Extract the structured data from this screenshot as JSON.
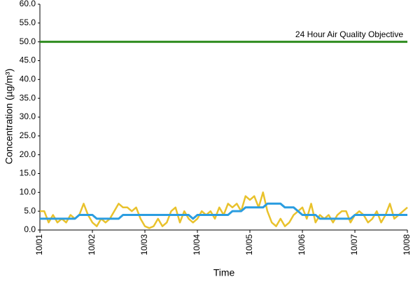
{
  "chart_data": {
    "type": "line",
    "y_label": "Concentration (µg/m³)",
    "x_label": "Time",
    "categories": [
      "10/01",
      null,
      null,
      null,
      null,
      null,
      null,
      null,
      null,
      null,
      null,
      null,
      "10/02",
      null,
      null,
      null,
      null,
      null,
      null,
      null,
      null,
      null,
      null,
      null,
      "10/03",
      null,
      null,
      null,
      null,
      null,
      null,
      null,
      null,
      null,
      null,
      null,
      "10/04",
      null,
      null,
      null,
      null,
      null,
      null,
      null,
      null,
      null,
      null,
      null,
      "10/05",
      null,
      null,
      null,
      null,
      null,
      null,
      null,
      null,
      null,
      null,
      null,
      "10/06",
      null,
      null,
      null,
      null,
      null,
      null,
      null,
      null,
      null,
      null,
      null,
      "10/07",
      null,
      null,
      null,
      null,
      null,
      null,
      null,
      null,
      null,
      null,
      null,
      "10/08"
    ],
    "series": [
      {
        "color": "#e9c22c",
        "values": [
          5,
          5,
          2,
          4,
          2,
          3,
          2,
          4,
          3,
          4,
          7,
          4,
          2,
          1,
          3,
          2,
          3,
          5,
          7,
          6,
          6,
          5,
          6,
          3,
          1,
          0.5,
          1,
          3,
          1,
          2,
          5,
          6,
          2,
          5,
          3,
          2,
          3,
          5,
          4,
          5,
          3,
          6,
          4,
          7,
          6,
          7,
          5,
          9,
          8,
          9,
          6,
          10,
          5,
          2,
          1,
          3,
          1,
          2,
          4,
          5,
          6,
          3,
          7,
          2,
          4,
          3,
          4,
          2,
          4,
          5,
          5,
          2,
          4,
          5,
          4,
          2,
          3,
          5,
          2,
          4,
          7,
          3,
          4,
          5,
          6
        ]
      },
      {
        "color": "#2b9de0",
        "values": [
          3,
          3,
          3,
          3,
          3,
          3,
          3,
          3,
          3,
          4,
          4,
          4,
          4,
          3,
          3,
          3,
          3,
          3,
          3,
          4,
          4,
          4,
          4,
          4,
          4,
          4,
          4,
          4,
          4,
          4,
          4,
          4,
          4,
          4,
          4,
          3,
          4,
          4,
          4,
          4,
          4,
          4,
          4,
          4,
          5,
          5,
          5,
          6,
          6,
          6,
          6,
          6,
          7,
          7,
          7,
          7,
          6,
          6,
          6,
          5,
          4,
          4,
          4,
          4,
          3,
          3,
          3,
          3,
          3,
          3,
          3,
          3,
          4,
          4,
          4,
          4,
          4,
          4,
          4,
          4,
          4,
          4,
          4,
          4,
          4
        ]
      }
    ],
    "objective": {
      "value": 50,
      "label": "24 Hour Air Quality Objective",
      "color": "#2e8b1e"
    },
    "ylim": [
      0,
      60
    ],
    "yticks": [
      {
        "value": 0,
        "label": "0.0"
      },
      {
        "value": 5,
        "label": "5.0"
      },
      {
        "value": 10,
        "label": "10.0"
      },
      {
        "value": 15,
        "label": "15.0"
      },
      {
        "value": 20,
        "label": "20.0"
      },
      {
        "value": 25,
        "label": "25.0"
      },
      {
        "value": 30,
        "label": "30.0"
      },
      {
        "value": 35,
        "label": "35.0"
      },
      {
        "value": 40,
        "label": "40.0"
      },
      {
        "value": 45,
        "label": "45.0"
      },
      {
        "value": 50,
        "label": "50.0"
      },
      {
        "value": 55,
        "label": "55.0"
      },
      {
        "value": 60,
        "label": "60.0"
      }
    ]
  }
}
